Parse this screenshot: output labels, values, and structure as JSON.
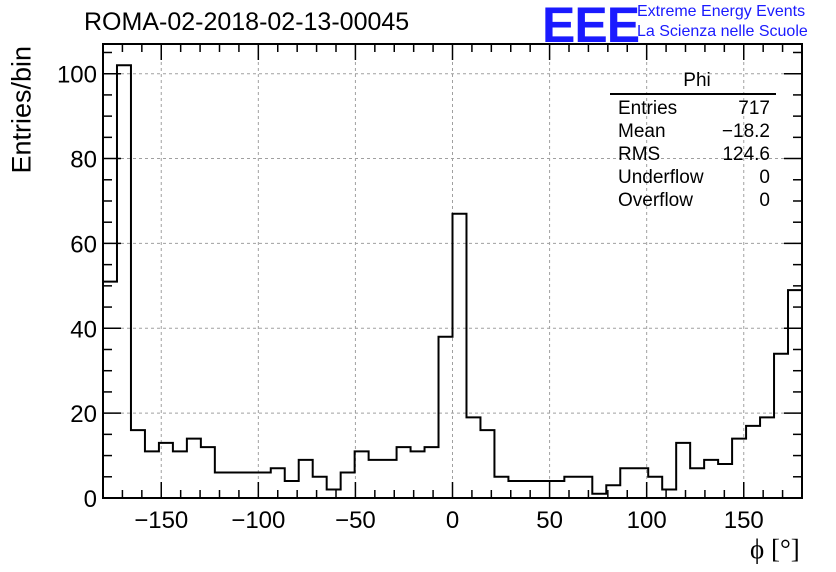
{
  "header": {
    "run_title": "ROMA-02-2018-02-13-00045",
    "logo_text": "EEE",
    "logo_line1": "Extreme Energy Events",
    "logo_line2": "La Scienza nelle Scuole"
  },
  "stats_box": {
    "title": "Phi",
    "rows": [
      {
        "label": "Entries",
        "value": "717"
      },
      {
        "label": "Mean",
        "value": "−18.2"
      },
      {
        "label": "RMS",
        "value": "124.6"
      },
      {
        "label": "Underflow",
        "value": "0"
      },
      {
        "label": "Overflow",
        "value": "0"
      }
    ]
  },
  "colors": {
    "histogram": "#000000",
    "grid": "#a0a0a0",
    "logo": "#1a1aff"
  },
  "chart_data": {
    "type": "bar",
    "style": "step-histogram",
    "xlabel": "ϕ [°]",
    "ylabel": "Entries/bin",
    "xlim": [
      -180,
      180
    ],
    "ylim": [
      0,
      107
    ],
    "grid": true,
    "bin_width": 7.2,
    "x_ticks": [
      -150,
      -100,
      -50,
      0,
      50,
      100,
      150
    ],
    "x_tick_labels": [
      "−150",
      "−100",
      "−50",
      "0",
      "50",
      "100",
      "150"
    ],
    "y_ticks": [
      0,
      20,
      40,
      60,
      80,
      100
    ],
    "y_tick_labels": [
      "0",
      "20",
      "40",
      "60",
      "80",
      "100"
    ],
    "values": [
      51,
      102,
      16,
      11,
      13,
      11,
      14,
      12,
      6,
      6,
      6,
      6,
      7,
      4,
      9,
      5,
      2,
      6,
      11,
      9,
      9,
      12,
      11,
      12,
      38,
      67,
      19,
      16,
      5,
      4,
      4,
      4,
      4,
      5,
      5,
      1,
      3,
      7,
      7,
      5,
      2,
      13,
      7,
      9,
      8,
      14,
      17,
      19,
      34,
      49
    ]
  }
}
